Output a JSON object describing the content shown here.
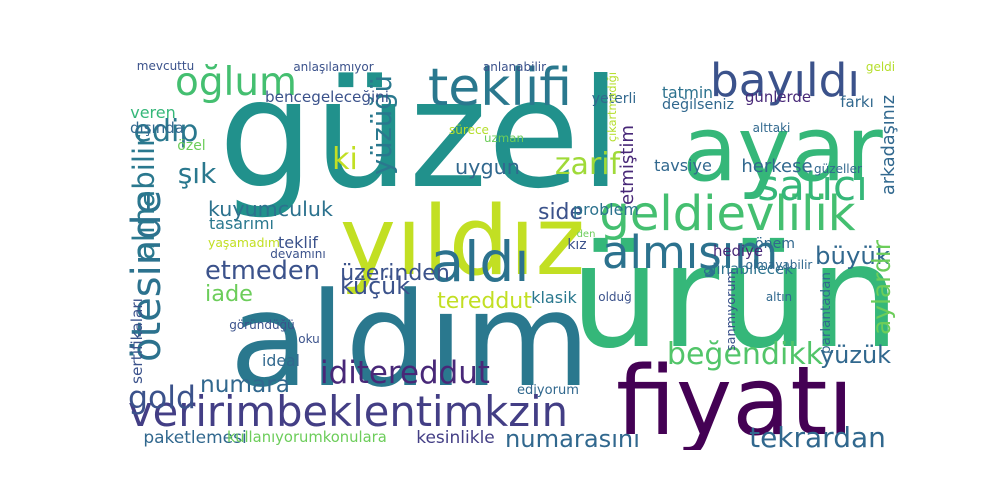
{
  "words": [
    {
      "text": "güzel",
      "color": "#21918c"
    },
    {
      "text": "ürün",
      "color": "#35b779"
    },
    {
      "text": "aldım",
      "color": "#2a788e"
    },
    {
      "text": "fiyatı",
      "color": "#440154"
    },
    {
      "text": "ayar",
      "color": "#35b779"
    },
    {
      "text": "yıldız",
      "color": "#c2df23"
    },
    {
      "text": "veririmbeklentimkzin",
      "color": "#433e85"
    },
    {
      "text": "teklifi",
      "color": "#2a788e"
    },
    {
      "text": "bayıldı",
      "color": "#3b528b"
    },
    {
      "text": "oğlum",
      "color": "#44bf70"
    },
    {
      "text": "geldievlilik",
      "color": "#44bf70"
    },
    {
      "text": "satıcı",
      "color": "#35b779"
    },
    {
      "text": "ötesinde",
      "color": "#2c728e"
    },
    {
      "text": "alınabilir",
      "color": "#2a788e"
    },
    {
      "text": "aldı",
      "color": "#2c728e"
    },
    {
      "text": "almışım",
      "color": "#2c728e"
    },
    {
      "text": "iditereddut",
      "color": "#482878"
    },
    {
      "text": "etmeden",
      "color": "#3b528b"
    },
    {
      "text": "numarasını",
      "color": "#31688e"
    },
    {
      "text": "tekrardan",
      "color": "#31688e"
    },
    {
      "text": "beğendikk",
      "color": "#52c569"
    },
    {
      "text": "numara",
      "color": "#31688e"
    },
    {
      "text": "gold",
      "color": "#3b528b"
    },
    {
      "text": "yüzüğü",
      "color": "#2a788e"
    },
    {
      "text": "edip",
      "color": "#2a788e"
    },
    {
      "text": "zarif",
      "color": "#a0da39"
    },
    {
      "text": "iade",
      "color": "#6ccd5a"
    },
    {
      "text": "küçük",
      "color": "#3b528b"
    },
    {
      "text": "büyük",
      "color": "#31688e"
    },
    {
      "text": "şık",
      "color": "#2a788e"
    },
    {
      "text": "ki",
      "color": "#c2df23"
    },
    {
      "text": "uygun",
      "color": "#31688e"
    },
    {
      "text": "side",
      "color": "#3b528b"
    },
    {
      "text": "yüzük",
      "color": "#31688e"
    },
    {
      "text": "kuyumculuk",
      "color": "#2c728e"
    },
    {
      "text": "etmiştim",
      "color": "#482878"
    },
    {
      "text": "aylardır",
      "color": "#6ccd5a"
    },
    {
      "text": "üzerinden",
      "color": "#3b528b"
    },
    {
      "text": "tereddut",
      "color": "#c2df23"
    },
    {
      "text": "tavsiye",
      "color": "#31688e"
    },
    {
      "text": "herkese",
      "color": "#31688e"
    },
    {
      "text": "bencegeleceğini",
      "color": "#3b528b"
    },
    {
      "text": "paketlemesi",
      "color": "#31688e"
    },
    {
      "text": "kullanıyorumkonulara",
      "color": "#6ccd5a"
    },
    {
      "text": "kesinlikle",
      "color": "#433e85"
    },
    {
      "text": "ediyorum",
      "color": "#31688e"
    },
    {
      "text": "klasik",
      "color": "#2a788e"
    },
    {
      "text": "tasarımı",
      "color": "#2a788e"
    },
    {
      "text": "yaşamadım",
      "color": "#c2df23"
    },
    {
      "text": "teklif",
      "color": "#3b528b"
    },
    {
      "text": "hediye",
      "color": "#482878"
    },
    {
      "text": "alınabilecek",
      "color": "#2c728e"
    },
    {
      "text": "problem",
      "color": "#2c728e"
    },
    {
      "text": "önem",
      "color": "#31688e"
    },
    {
      "text": "kız",
      "color": "#3b528b"
    },
    {
      "text": "günlerde",
      "color": "#482878"
    },
    {
      "text": "tatmin",
      "color": "#2c728e"
    },
    {
      "text": "değilseniz",
      "color": "#31688e"
    },
    {
      "text": "farkı",
      "color": "#31688e"
    },
    {
      "text": "arkadaşınız",
      "color": "#31688e"
    },
    {
      "text": "yeterli",
      "color": "#31688e"
    },
    {
      "text": "çıkartmadığı",
      "color": "#b5de2b"
    },
    {
      "text": "veren",
      "color": "#35b779"
    },
    {
      "text": "dışında",
      "color": "#31688e"
    },
    {
      "text": "özel",
      "color": "#6ccd5a"
    },
    {
      "text": "sürece",
      "color": "#b5de2b"
    },
    {
      "text": "uzman",
      "color": "#6ccd5a"
    },
    {
      "text": "mevcuttu",
      "color": "#3b528b"
    },
    {
      "text": "anlaşılamıyor",
      "color": "#3b528b"
    },
    {
      "text": "anlanabilir",
      "color": "#3b528b"
    },
    {
      "text": "geldi",
      "color": "#b5de2b"
    },
    {
      "text": "alttaki",
      "color": "#31688e"
    },
    {
      "text": "güzeller",
      "color": "#31688e"
    },
    {
      "text": "olmayabilir",
      "color": "#31688e"
    },
    {
      "text": "altın",
      "color": "#31688e"
    },
    {
      "text": "olduğ",
      "color": "#3b528b"
    },
    {
      "text": "parlantadan",
      "color": "#31688e"
    },
    {
      "text": "sanmıyorum",
      "color": "#3b528b"
    },
    {
      "text": "devamını",
      "color": "#3b528b"
    },
    {
      "text": "göründüğü",
      "color": "#3b528b"
    },
    {
      "text": "oku",
      "color": "#3b528b"
    },
    {
      "text": "sertifikaları",
      "color": "#3b528b"
    },
    {
      "text": "ideal",
      "color": "#31688e"
    },
    {
      "text": "den",
      "color": "#6ccd5a"
    }
  ]
}
